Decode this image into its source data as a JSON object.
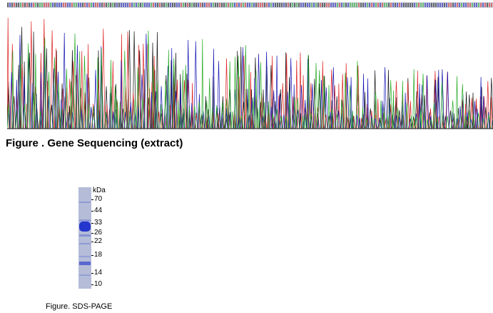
{
  "sequencing": {
    "caption": "Figure . Gene Sequencing (extract)",
    "channel_colors": {
      "A": "#22aa22",
      "C": "#1414b4",
      "G": "#111111",
      "T": "#dd1e1e"
    },
    "base_call_color": "#6a7a9a"
  },
  "gel": {
    "unit_label": "kDa",
    "markers": [
      "70",
      "44",
      "33",
      "26",
      "22",
      "18",
      "14",
      "10"
    ],
    "lane_color": "#b4bcd8",
    "band_color": "#1c2ecc",
    "caption": "Figure. SDS-PAGE"
  }
}
